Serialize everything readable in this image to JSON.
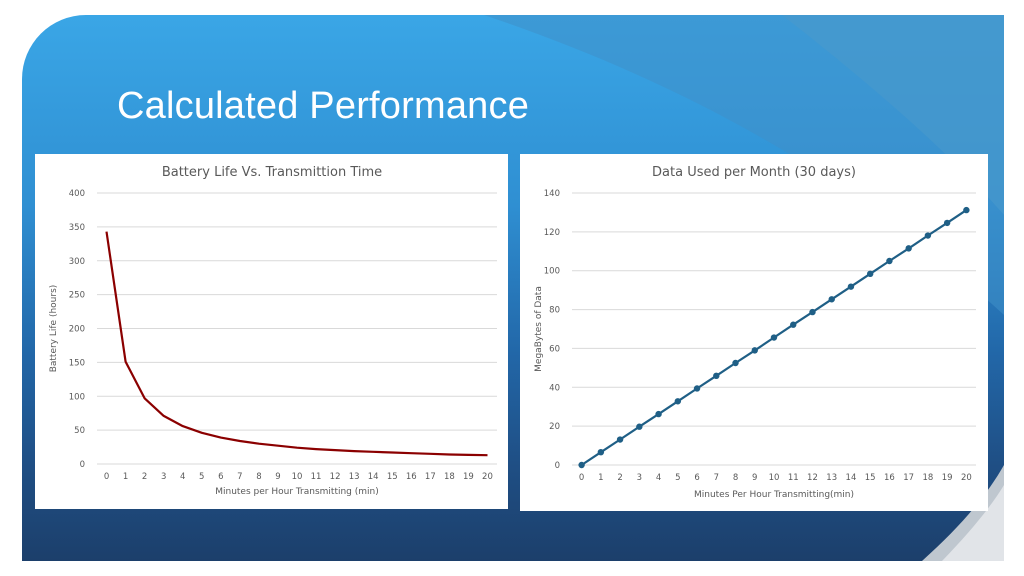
{
  "slide": {
    "title": "Calculated Performance",
    "colors": {
      "bg_top": "#3aa6e6",
      "bg_bottom": "#1c3f6b",
      "battery_line": "#8b0000",
      "data_line": "#1f5f86",
      "gridline": "#d9d9d9",
      "text": "#595959"
    }
  },
  "chart_data": [
    {
      "type": "line",
      "title": "Battery Life Vs. Transmittion Time",
      "xlabel": "Minutes per Hour Transmitting (min)",
      "ylabel": "Battery Life (hours)",
      "x": [
        0,
        1,
        2,
        3,
        4,
        5,
        6,
        7,
        8,
        9,
        10,
        11,
        12,
        13,
        14,
        15,
        16,
        17,
        18,
        19,
        20
      ],
      "series": [
        {
          "values": [
            343,
            151,
            97,
            71,
            56,
            46,
            39,
            34,
            30,
            27,
            24,
            22,
            20.5,
            19,
            18,
            17,
            16,
            15,
            14,
            13.5,
            13
          ],
          "color": "#8b0000",
          "markers": false
        }
      ],
      "ylim": [
        0,
        400
      ],
      "yticks": [
        0,
        50,
        100,
        150,
        200,
        250,
        300,
        350,
        400
      ],
      "grid": true,
      "legend": "none"
    },
    {
      "type": "line",
      "title": "Data Used per Month (30 days)",
      "xlabel": "Minutes Per Hour Transmitting(min)",
      "ylabel": "MegaBytes of Data",
      "x": [
        0,
        1,
        2,
        3,
        4,
        5,
        6,
        7,
        8,
        9,
        10,
        11,
        12,
        13,
        14,
        15,
        16,
        17,
        18,
        19,
        20
      ],
      "series": [
        {
          "values": [
            0,
            6.6,
            13.1,
            19.7,
            26.2,
            32.8,
            39.4,
            45.9,
            52.5,
            59.0,
            65.6,
            72.2,
            78.7,
            85.3,
            91.8,
            98.4,
            105.0,
            111.5,
            118.1,
            124.6,
            131.2
          ],
          "color": "#1f5f86",
          "markers": true
        }
      ],
      "ylim": [
        0,
        140
      ],
      "yticks": [
        0,
        20,
        40,
        60,
        80,
        100,
        120,
        140
      ],
      "grid": true,
      "legend": "none"
    }
  ]
}
